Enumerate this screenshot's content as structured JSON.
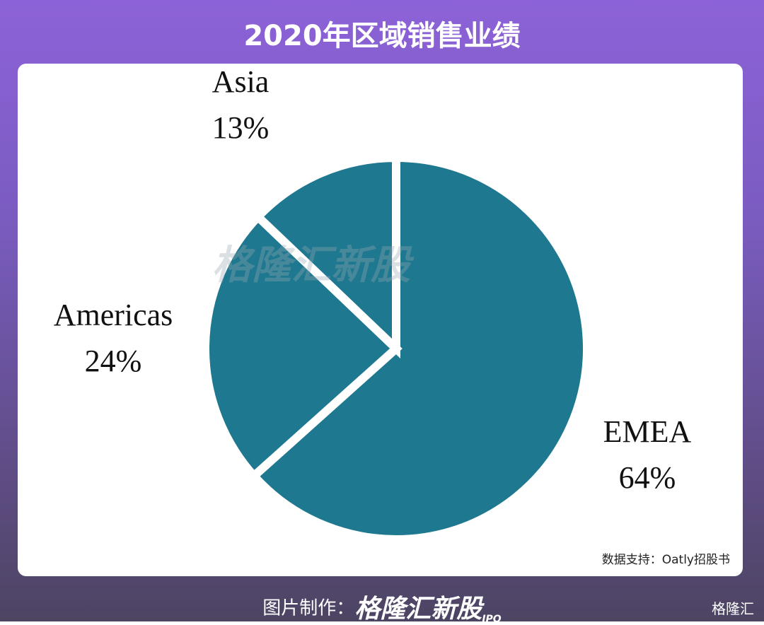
{
  "chart_data": {
    "type": "pie",
    "title": "2020年区域销售业绩",
    "categories": [
      "EMEA",
      "Americas",
      "Asia"
    ],
    "values": [
      64,
      24,
      13
    ],
    "value_labels": [
      "64%",
      "24%",
      "13%"
    ],
    "color": "#1e7890",
    "source": "数据支持：Oatly招股书"
  },
  "watermark": "格隆汇新股",
  "footer": {
    "label": "图片制作：",
    "brand": "格隆汇新股",
    "brand_sub": "IPO"
  },
  "corner": "格隆汇"
}
